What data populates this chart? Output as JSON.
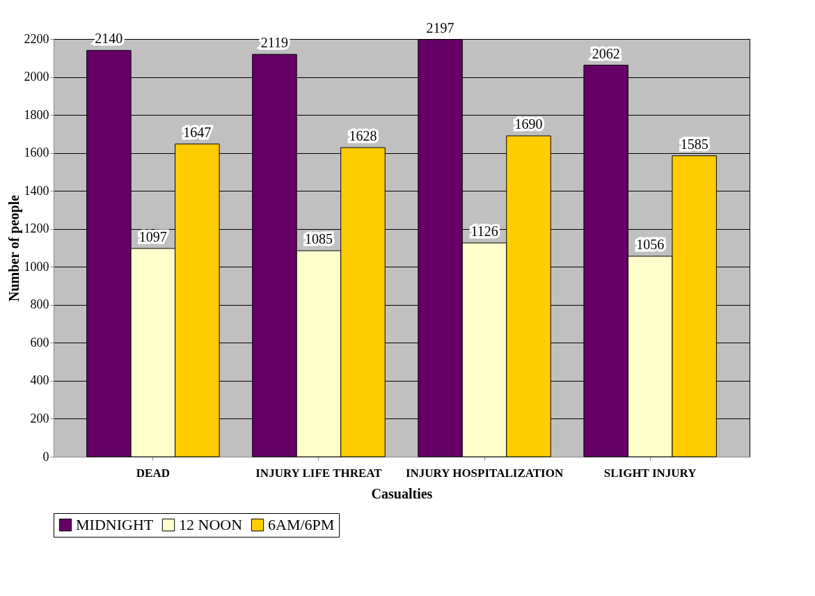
{
  "chart_data": {
    "type": "bar",
    "xlabel": "Casualties",
    "ylabel": "Number of people",
    "categories": [
      "DEAD",
      "INJURY LIFE THREAT",
      "INJURY HOSPITALIZATION",
      "SLIGHT INJURY"
    ],
    "series": [
      {
        "name": "MIDNIGHT",
        "color": "#660066",
        "values": [
          2140,
          2119,
          2197,
          2062
        ]
      },
      {
        "name": "12 NOON",
        "color": "#ffffcc",
        "values": [
          1097,
          1085,
          1126,
          1056
        ]
      },
      {
        "name": "6AM/6PM",
        "color": "#ffcc00",
        "values": [
          1647,
          1628,
          1690,
          1585
        ]
      }
    ],
    "ylim": [
      0,
      2200
    ],
    "yticks": [
      0,
      200,
      400,
      600,
      800,
      1000,
      1200,
      1400,
      1600,
      1800,
      2000,
      2200
    ],
    "grid": "y",
    "legend": "bottom",
    "data_labels": true
  }
}
